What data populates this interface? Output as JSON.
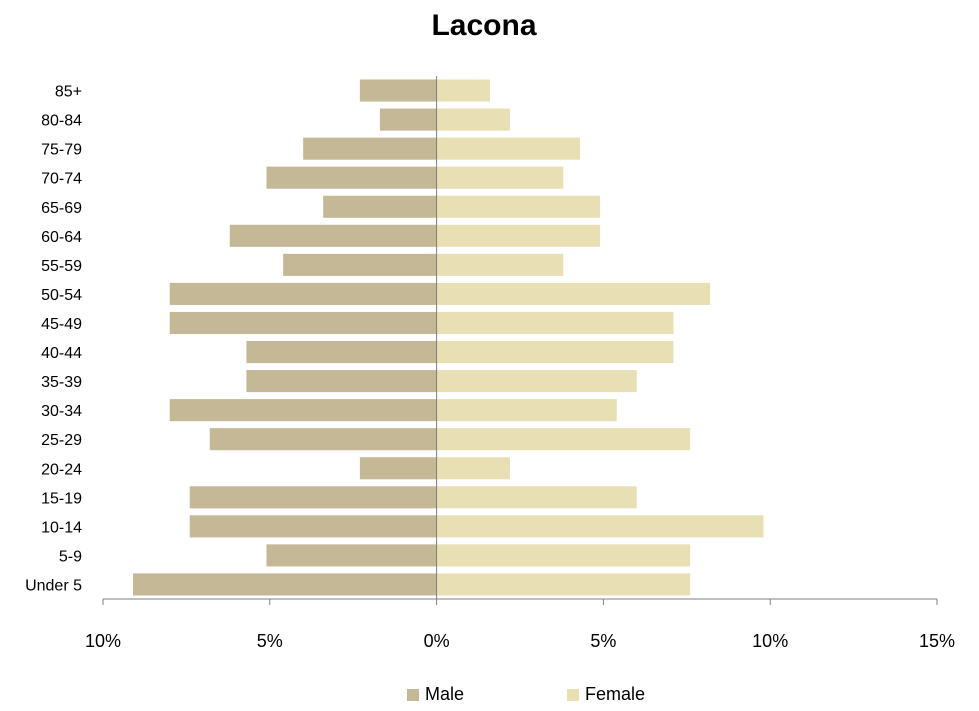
{
  "chart_data": {
    "type": "bar",
    "orientation": "horizontal",
    "title": "Lacona",
    "categories": [
      "Under 5",
      "5-9",
      "10-14",
      "15-19",
      "20-24",
      "25-29",
      "30-34",
      "35-39",
      "40-44",
      "45-49",
      "50-54",
      "55-59",
      "60-64",
      "65-69",
      "70-74",
      "75-79",
      "80-84",
      "85+"
    ],
    "series": [
      {
        "name": "Male",
        "color": "#c4b896",
        "values": [
          -9.1,
          -5.1,
          -7.4,
          -7.4,
          -2.3,
          -6.8,
          -8.0,
          -5.7,
          -5.7,
          -8.0,
          -8.0,
          -4.6,
          -6.2,
          -3.4,
          -5.1,
          -4.0,
          -1.7,
          -2.3
        ]
      },
      {
        "name": "Female",
        "color": "#e8e0b4",
        "values": [
          7.6,
          7.6,
          9.8,
          6.0,
          2.2,
          7.6,
          5.4,
          6.0,
          7.1,
          7.1,
          8.2,
          3.8,
          4.9,
          4.9,
          3.8,
          4.3,
          2.2,
          1.6
        ]
      }
    ],
    "xlim": [
      -10,
      15
    ],
    "xticks": [
      -10,
      -5,
      0,
      5,
      10,
      15
    ],
    "xtick_labels": [
      "10%",
      "5%",
      "0%",
      "5%",
      "10%",
      "15%"
    ],
    "legend_position": "bottom",
    "grid": false
  }
}
